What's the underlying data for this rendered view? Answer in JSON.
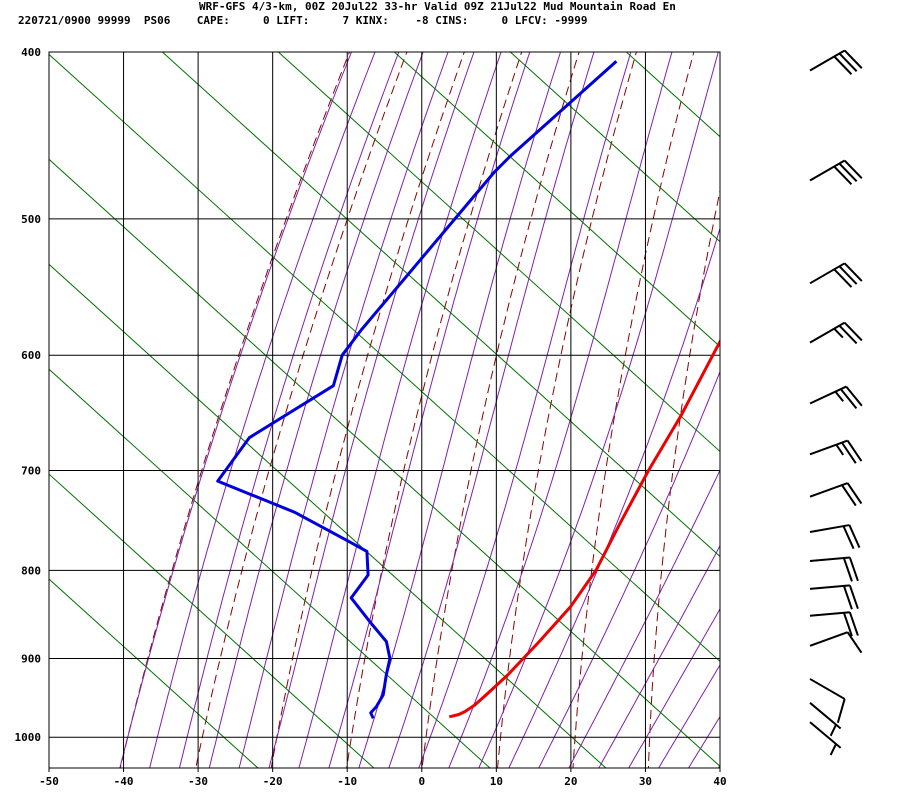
{
  "header": {
    "line1": "WRF-GFS 4/3-km, 00Z 20Jul22 33-hr Valid 09Z 21Jul22 Mud Mountain Road En",
    "line2": "220721/0900 99999  PS06    CAPE:     0 LIFT:     7 KINX:    -8 CINS:     0 LFCV: -9999"
  },
  "chart_data": {
    "type": "line",
    "title": "",
    "xlabel": "",
    "ylabel": "",
    "x_ticks": [
      -50,
      -40,
      -30,
      -20,
      -10,
      0,
      10,
      20,
      30,
      40
    ],
    "y_ticks": [
      400,
      500,
      600,
      700,
      800,
      900,
      1000
    ],
    "xlim": [
      -50,
      40
    ],
    "ylim": [
      1042,
      400
    ],
    "y_scale": "log",
    "skew": "skew-T log-p diagram",
    "colors": {
      "temperature": "#ee0000",
      "dewpoint": "#0000dd",
      "dry_adiabats": "#8b0000",
      "moist_adiabats": "#8020b0",
      "mixing_ratio": "#007000",
      "grid": "#000000"
    },
    "series": [
      {
        "key": "temperature",
        "points": [
          [
            405,
            -21.7
          ],
          [
            450,
            -20
          ],
          [
            500,
            -17.2
          ],
          [
            550,
            -14
          ],
          [
            600,
            -10.8
          ],
          [
            650,
            -7.8
          ],
          [
            700,
            -5.5
          ],
          [
            750,
            -3
          ],
          [
            800,
            -0.5
          ],
          [
            840,
            0.5
          ],
          [
            880,
            0.5
          ],
          [
            920,
            0.3
          ],
          [
            945,
            -0.2
          ],
          [
            958,
            -0.5
          ],
          [
            966,
            -1
          ],
          [
            970,
            -1.5
          ],
          [
            973,
            -2.5
          ]
        ]
      },
      {
        "key": "dewpoint",
        "points": [
          [
            405,
            -59.2
          ],
          [
            460,
            -62
          ],
          [
            470,
            -62.2
          ],
          [
            580,
            -61
          ],
          [
            600,
            -60.5
          ],
          [
            625,
            -58
          ],
          [
            670,
            -63
          ],
          [
            710,
            -62
          ],
          [
            740,
            -48
          ],
          [
            770,
            -37
          ],
          [
            780,
            -33.5
          ],
          [
            805,
            -30.5
          ],
          [
            830,
            -30
          ],
          [
            860,
            -24
          ],
          [
            880,
            -20
          ],
          [
            900,
            -17.5
          ],
          [
            920,
            -16
          ],
          [
            945,
            -14
          ],
          [
            960,
            -13.5
          ],
          [
            968,
            -13.5
          ],
          [
            975,
            -12.5
          ]
        ]
      }
    ],
    "wind_barbs": [
      {
        "p": 410,
        "dir": 240,
        "speed": 30
      },
      {
        "p": 475,
        "dir": 240,
        "speed": 30
      },
      {
        "p": 545,
        "dir": 240,
        "speed": 30
      },
      {
        "p": 590,
        "dir": 240,
        "speed": 25
      },
      {
        "p": 640,
        "dir": 245,
        "speed": 25
      },
      {
        "p": 685,
        "dir": 250,
        "speed": 25
      },
      {
        "p": 725,
        "dir": 250,
        "speed": 20
      },
      {
        "p": 760,
        "dir": 260,
        "speed": 20
      },
      {
        "p": 790,
        "dir": 265,
        "speed": 20
      },
      {
        "p": 820,
        "dir": 265,
        "speed": 20
      },
      {
        "p": 850,
        "dir": 265,
        "speed": 20
      },
      {
        "p": 885,
        "dir": 250,
        "speed": 10
      },
      {
        "p": 925,
        "dir": 300,
        "speed": 10
      },
      {
        "p": 955,
        "dir": 310,
        "speed": 5
      },
      {
        "p": 980,
        "dir": 310,
        "speed": 5
      }
    ]
  }
}
